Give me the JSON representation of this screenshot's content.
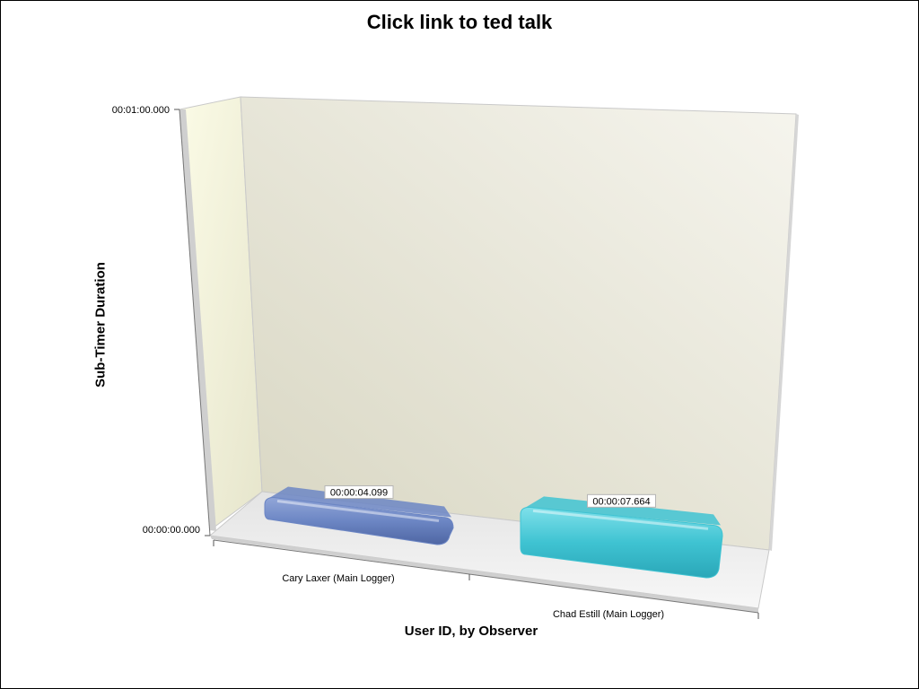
{
  "chart_data": {
    "type": "bar",
    "title": "Click link to ted talk",
    "xlabel": "User ID, by Observer",
    "ylabel": "Sub-Timer Duration",
    "y_ticks": [
      "00:00:00.000",
      "00:01:00.000"
    ],
    "ylim_seconds": [
      0,
      60
    ],
    "categories": [
      "Cary Laxer (Main Logger)",
      "Chad Estill (Main Logger)"
    ],
    "values": [
      4.099,
      7.664
    ],
    "value_labels": [
      "00:00:04.099",
      "00:00:07.664"
    ],
    "colors": [
      "#6c86c4",
      "#3fc3d2"
    ],
    "grid": false,
    "legend": "none"
  }
}
